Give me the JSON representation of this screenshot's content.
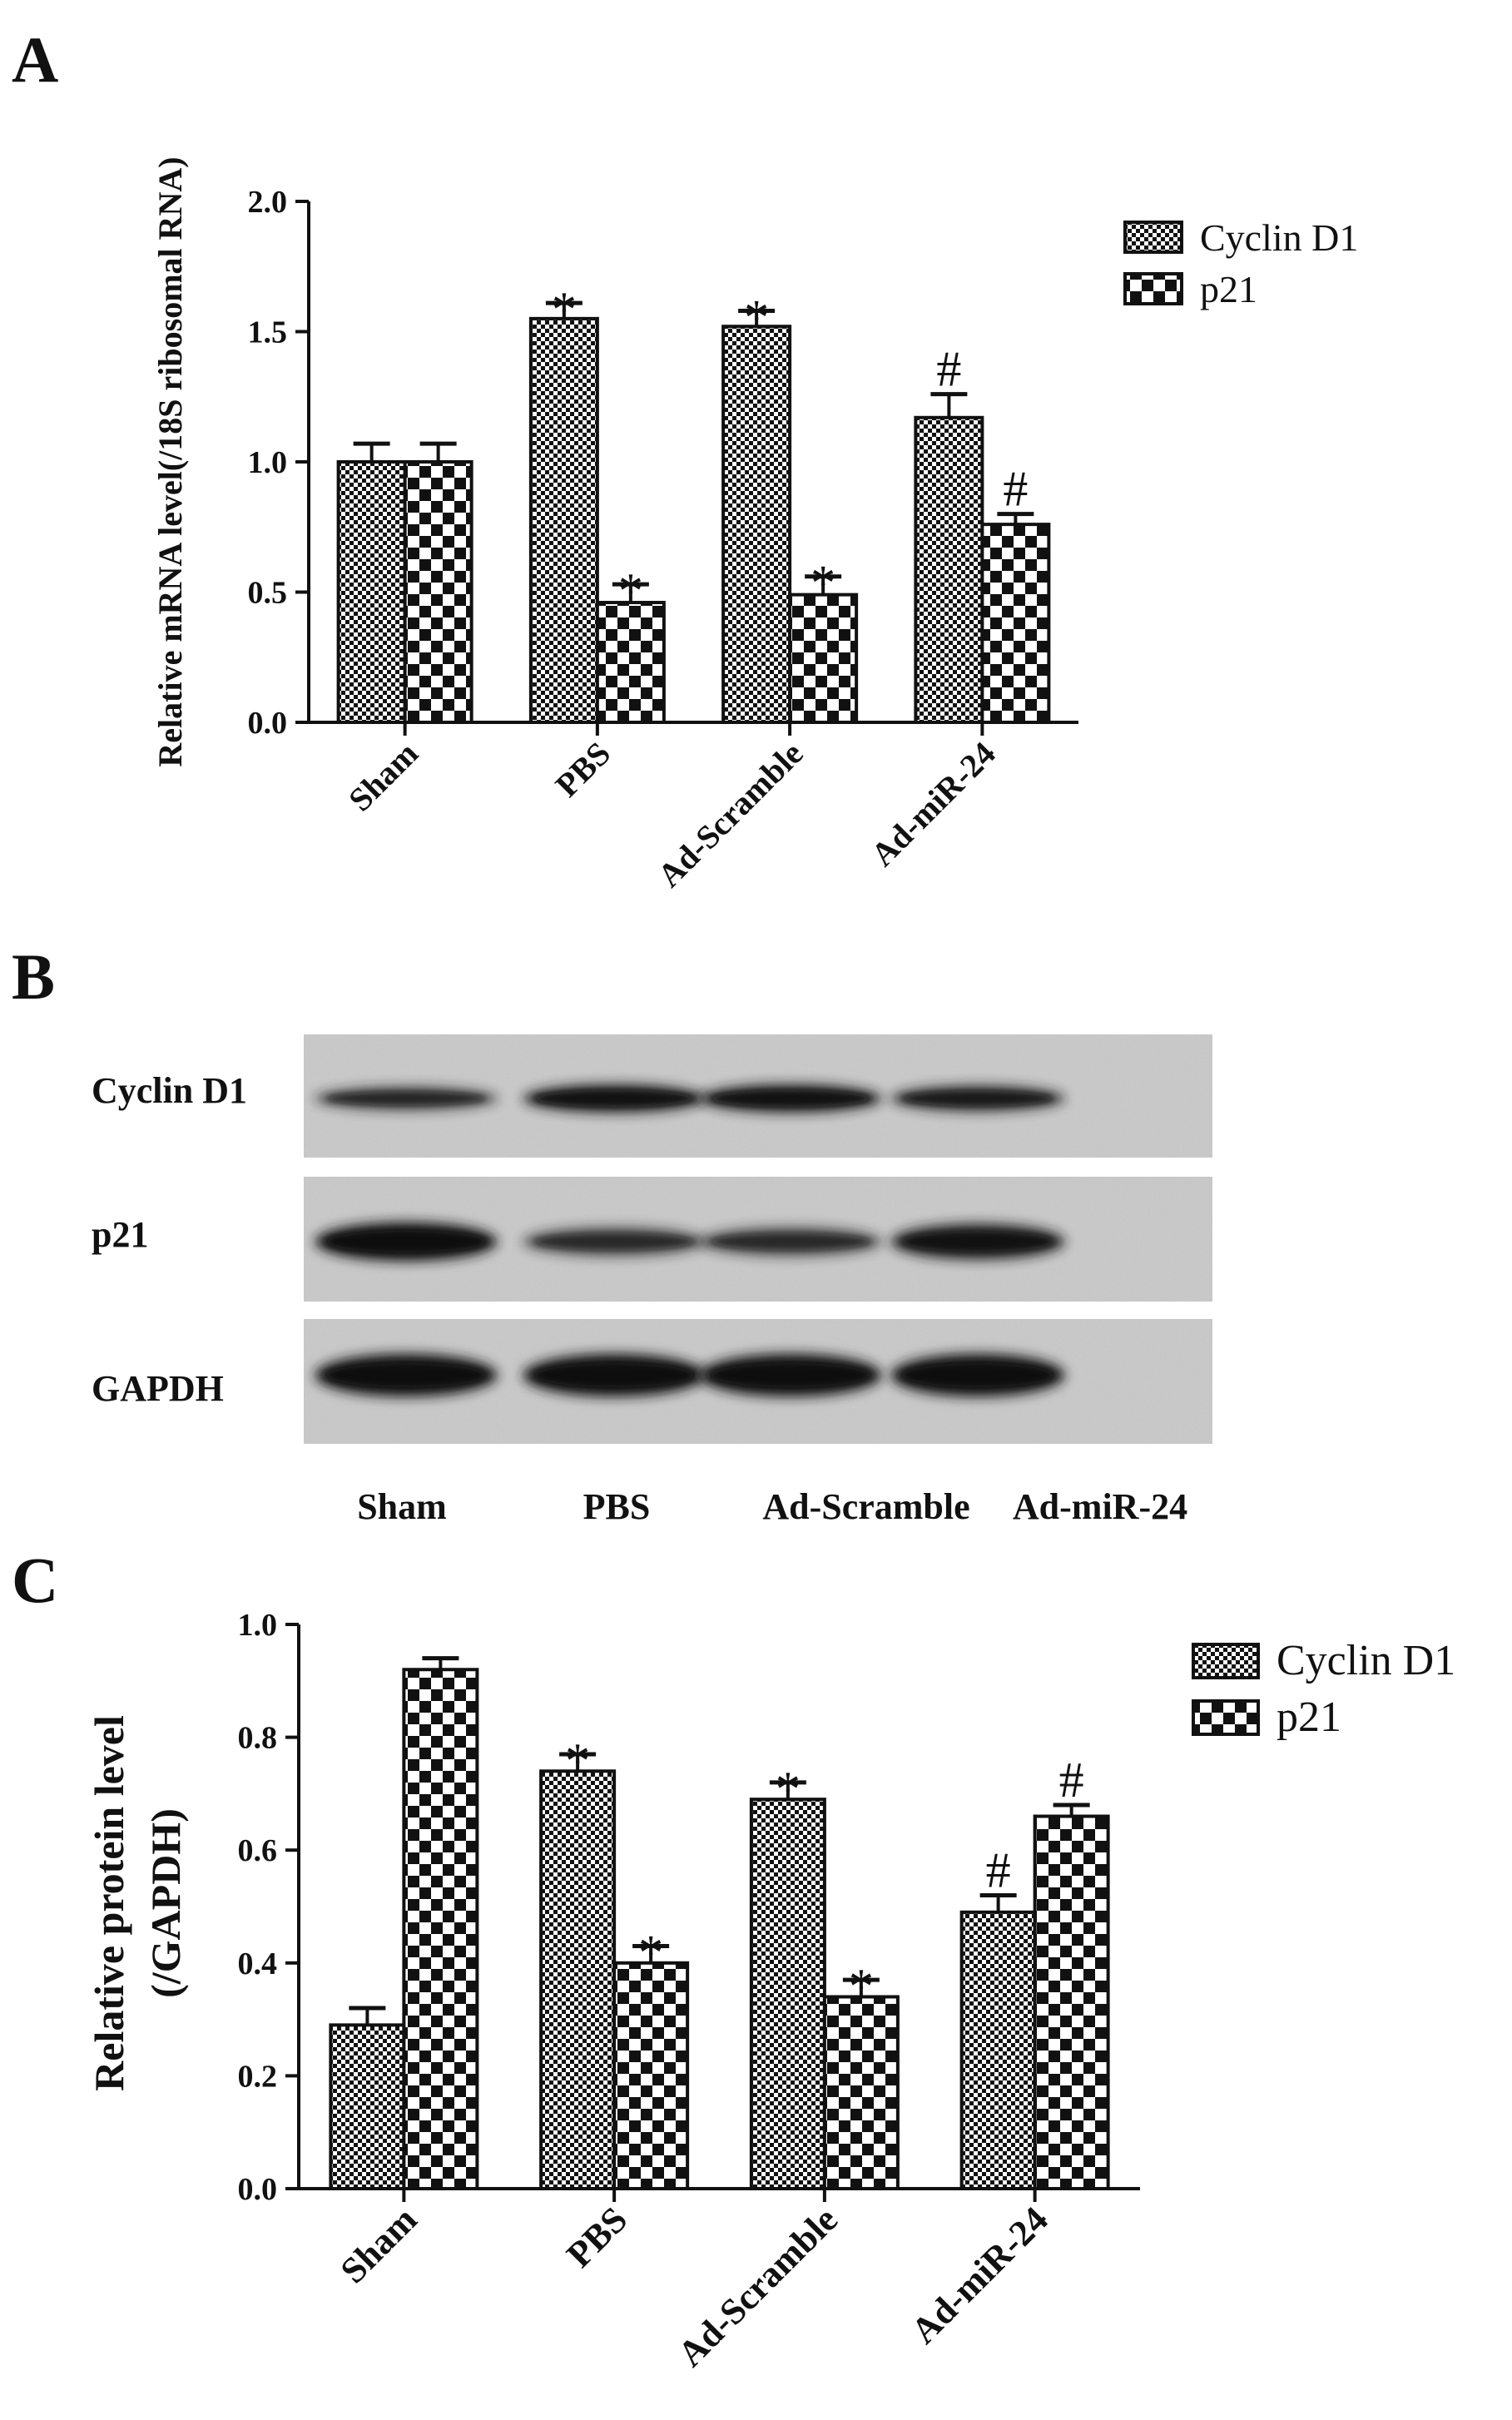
{
  "panels": {
    "A": {
      "letter": "A"
    },
    "B": {
      "letter": "B"
    },
    "C": {
      "letter": "C"
    }
  },
  "colors": {
    "ink": "#111111",
    "blot_bg": "#c9c9c9",
    "band": "#1a1a1a"
  },
  "chart_data": [
    {
      "type": "bar",
      "panel": "A",
      "title": "",
      "xlabel": "",
      "ylabel": "Relative mRNA level(/18S ribosomal RNA)",
      "ylim": [
        0,
        2.0
      ],
      "yticks": [
        "0.0",
        "0.5",
        "1.0",
        "1.5",
        "2.0"
      ],
      "categories": [
        "Sham",
        "PBS",
        "Ad-Scramble",
        "Ad-miR-24"
      ],
      "series": [
        {
          "name": "Cyclin D1",
          "pattern": "fine-checker",
          "values": [
            1.0,
            1.55,
            1.52,
            1.17
          ],
          "errors": [
            0.07,
            0.06,
            0.06,
            0.09
          ],
          "marks": [
            "",
            "*",
            "*",
            "#"
          ]
        },
        {
          "name": "p21",
          "pattern": "coarse-checker",
          "values": [
            1.0,
            0.46,
            0.49,
            0.76
          ],
          "errors": [
            0.07,
            0.07,
            0.07,
            0.04
          ],
          "marks": [
            "",
            "*",
            "*",
            "#"
          ]
        }
      ],
      "legend": {
        "placement": "top-right",
        "entries": [
          "Cyclin D1",
          "p21"
        ]
      },
      "grid": false
    },
    {
      "type": "western-blot",
      "panel": "B",
      "rows": [
        "Cyclin D1",
        "p21",
        "GAPDH"
      ],
      "lanes": [
        "Sham",
        "PBS",
        "Ad-Scramble",
        "Ad-miR-24"
      ]
    },
    {
      "type": "bar",
      "panel": "C",
      "title": "",
      "xlabel": "",
      "ylabel_lines": [
        "Relative protein level",
        "(/GAPDH)"
      ],
      "ylim": [
        0,
        1.0
      ],
      "yticks": [
        "0.0",
        "0.2",
        "0.4",
        "0.6",
        "0.8",
        "1.0"
      ],
      "categories": [
        "Sham",
        "PBS",
        "Ad-Scramble",
        "Ad-miR-24"
      ],
      "series": [
        {
          "name": "Cyclin D1",
          "pattern": "fine-checker",
          "values": [
            0.29,
            0.74,
            0.69,
            0.49
          ],
          "errors": [
            0.03,
            0.03,
            0.03,
            0.03
          ],
          "marks": [
            "",
            "*",
            "*",
            "#"
          ]
        },
        {
          "name": "p21",
          "pattern": "coarse-checker",
          "values": [
            0.92,
            0.4,
            0.34,
            0.66
          ],
          "errors": [
            0.02,
            0.03,
            0.03,
            0.02
          ],
          "marks": [
            "",
            "*",
            "*",
            "#"
          ]
        }
      ],
      "legend": {
        "placement": "top-right",
        "entries": [
          "Cyclin D1",
          "p21"
        ]
      },
      "grid": false
    }
  ]
}
